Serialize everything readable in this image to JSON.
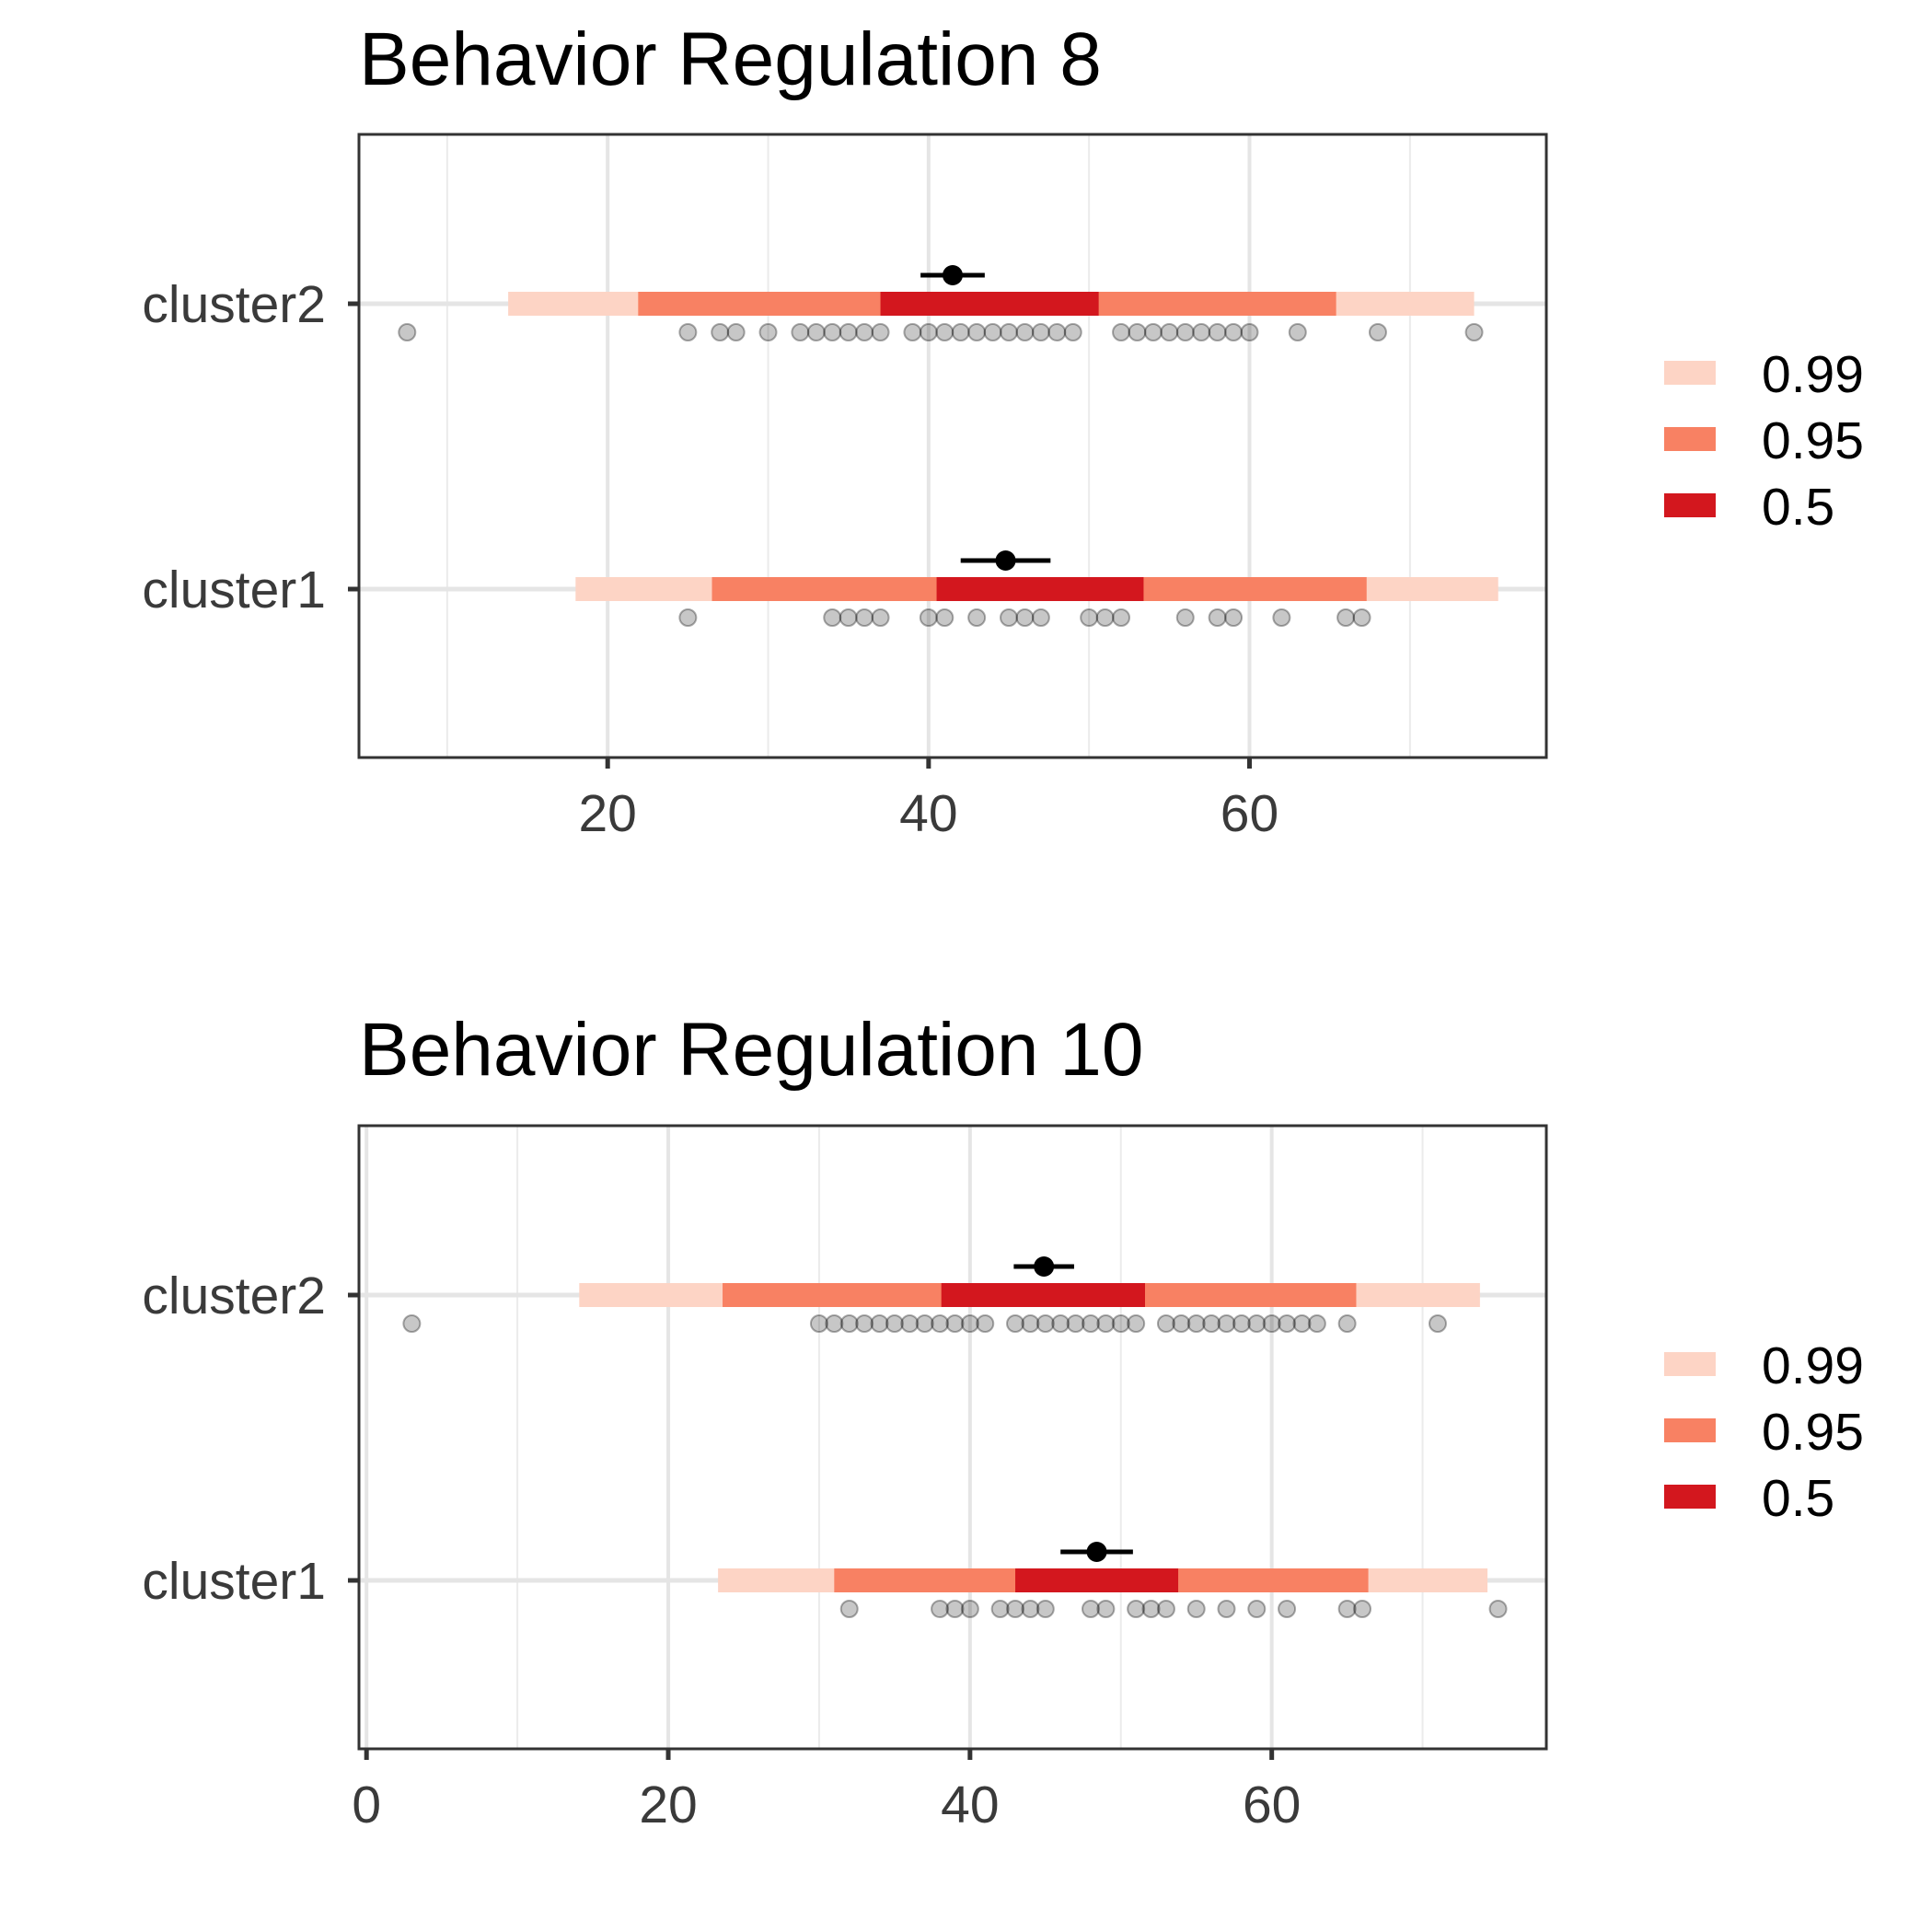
{
  "chart_data": [
    {
      "type": "interval",
      "title": "Behavior Regulation 8",
      "xlabel": "",
      "ylabel": "",
      "xlim": [
        4.5,
        78.5
      ],
      "x_ticks": [
        20,
        40,
        60
      ],
      "x_minor": [
        10,
        30,
        50,
        70
      ],
      "categories": [
        "cluster2",
        "cluster1"
      ],
      "legend": {
        "position": "right",
        "items": [
          {
            "label": "0.99",
            "color": "#fdd4c5"
          },
          {
            "label": "0.95",
            "color": "#f88163"
          },
          {
            "label": "0.5",
            "color": "#d3171e"
          }
        ]
      },
      "series": [
        {
          "category": "cluster2",
          "intervals": [
            {
              "level": "0.99",
              "lo": 13.8,
              "hi": 74.0
            },
            {
              "level": "0.95",
              "lo": 21.9,
              "hi": 65.4
            },
            {
              "level": "0.5",
              "lo": 37.0,
              "hi": 50.6
            }
          ],
          "estimate": 41.5,
          "estimate_lo": 39.5,
          "estimate_hi": 43.5,
          "points": [
            7.5,
            25,
            27,
            28,
            30,
            32,
            33,
            34,
            35,
            36,
            37,
            39,
            40,
            41,
            42,
            43,
            44,
            45,
            46,
            47,
            48,
            49,
            52,
            53,
            54,
            55,
            56,
            57,
            58,
            59,
            60,
            63,
            68,
            74
          ]
        },
        {
          "category": "cluster1",
          "intervals": [
            {
              "level": "0.99",
              "lo": 18.0,
              "hi": 75.5
            },
            {
              "level": "0.95",
              "lo": 26.5,
              "hi": 67.3
            },
            {
              "level": "0.5",
              "lo": 40.5,
              "hi": 53.4
            }
          ],
          "estimate": 44.8,
          "estimate_lo": 42.0,
          "estimate_hi": 47.6,
          "points": [
            25,
            34,
            35,
            36,
            37,
            40,
            41,
            43,
            45,
            46,
            47,
            50,
            51,
            52,
            56,
            58,
            59,
            62,
            66,
            67
          ]
        }
      ]
    },
    {
      "type": "interval",
      "title": "Behavior Regulation 10",
      "xlabel": "",
      "ylabel": "",
      "xlim": [
        -0.5,
        78.2
      ],
      "x_ticks": [
        0,
        20,
        40,
        60
      ],
      "x_minor": [
        10,
        30,
        50,
        70
      ],
      "categories": [
        "cluster2",
        "cluster1"
      ],
      "legend": {
        "position": "right",
        "items": [
          {
            "label": "0.99",
            "color": "#fdd4c5"
          },
          {
            "label": "0.95",
            "color": "#f88163"
          },
          {
            "label": "0.5",
            "color": "#d3171e"
          }
        ]
      },
      "series": [
        {
          "category": "cluster2",
          "intervals": [
            {
              "level": "0.99",
              "lo": 14.1,
              "hi": 73.8
            },
            {
              "level": "0.95",
              "lo": 23.6,
              "hi": 65.6
            },
            {
              "level": "0.5",
              "lo": 38.1,
              "hi": 51.6
            }
          ],
          "estimate": 44.9,
          "estimate_lo": 42.9,
          "estimate_hi": 46.9,
          "points": [
            3,
            30,
            31,
            32,
            33,
            34,
            35,
            36,
            37,
            38,
            39,
            40,
            41,
            43,
            44,
            45,
            46,
            47,
            48,
            49,
            50,
            51,
            53,
            54,
            55,
            56,
            57,
            58,
            59,
            60,
            61,
            62,
            63,
            65,
            71
          ]
        },
        {
          "category": "cluster1",
          "intervals": [
            {
              "level": "0.99",
              "lo": 23.3,
              "hi": 74.3
            },
            {
              "level": "0.95",
              "lo": 31.0,
              "hi": 66.4
            },
            {
              "level": "0.5",
              "lo": 43.0,
              "hi": 53.8
            }
          ],
          "estimate": 48.4,
          "estimate_lo": 46.0,
          "estimate_hi": 50.8,
          "points": [
            32,
            38,
            39,
            40,
            42,
            43,
            44,
            45,
            48,
            49,
            51,
            52,
            53,
            55,
            57,
            59,
            61,
            65,
            66,
            75
          ]
        }
      ]
    }
  ]
}
